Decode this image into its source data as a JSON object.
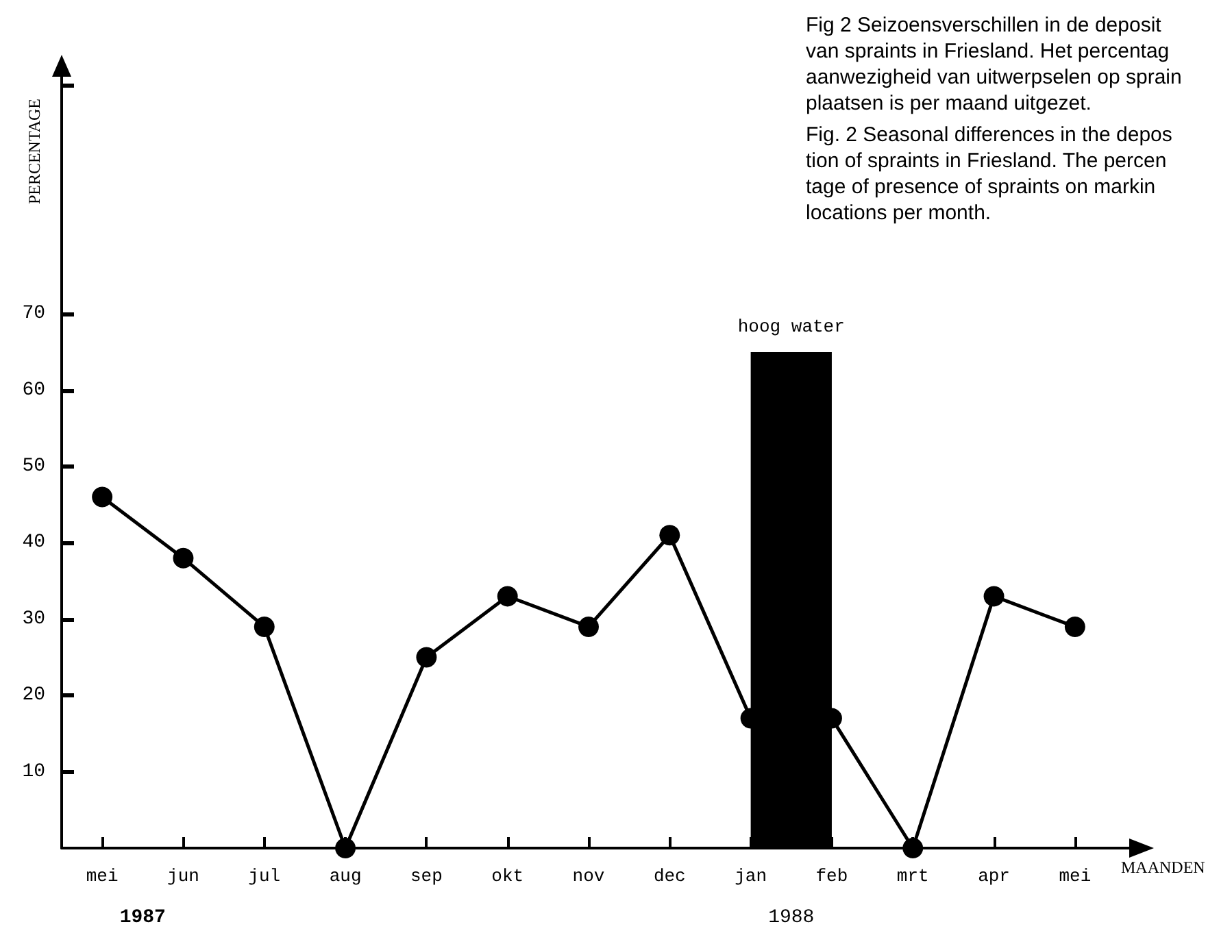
{
  "chart_data": {
    "type": "line",
    "title": "Fig 2 Seizoensverschillen in de deposit\nvan spraints in Friesland. Het percentag\naanwezigheid van uitwerpselen op sprain\nplaatsen is per maand uitgezet.",
    "subtitle": "Fig. 2 Seasonal differences in the depos\ntion of spraints in Friesland. The percen\ntage of presence of spraints on markin\nlocations per month.",
    "xlabel": "MAANDEN",
    "ylabel": "PERCENTAGE",
    "categories": [
      "mei",
      "jun",
      "jul",
      "aug",
      "sep",
      "okt",
      "nov",
      "dec",
      "jan",
      "feb",
      "mrt",
      "apr",
      "mei"
    ],
    "series": [
      {
        "type": "area",
        "name": "hoog water",
        "color": "#000000",
        "values": [
          null,
          null,
          null,
          null,
          null,
          null,
          null,
          null,
          65,
          65,
          null,
          null,
          null
        ]
      },
      {
        "color": "#000000",
        "marker": "circle",
        "values": [
          46,
          38,
          29,
          0,
          25,
          33,
          29,
          41,
          17,
          17,
          0,
          33,
          29
        ]
      }
    ],
    "ylim": [
      0,
      100
    ],
    "yticks": [
      10,
      20,
      30,
      40,
      50,
      60,
      70,
      {
        "value": 100,
        "label": null
      }
    ],
    "annotations": [
      "1987",
      "1988"
    ],
    "grid": false,
    "legend": false,
    "line_style": "solid"
  }
}
